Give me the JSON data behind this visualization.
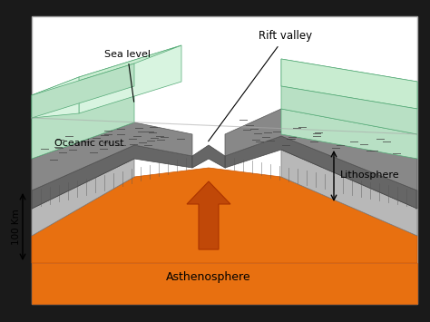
{
  "outer_bg": "#1a1a1a",
  "diagram_bg": "#f0f0f0",
  "labels": {
    "rift_valley": "Rift valley",
    "sea_level": "Sea level",
    "oceanic_crust": "Oceanic crust",
    "lithosphere": "Lithosphere",
    "asthenosphere": "Asthenosphere",
    "scale": "100 Km"
  },
  "colors": {
    "water_side": "#b8e0c4",
    "water_top": "#c8ecd0",
    "water_top_light": "#d8f4e0",
    "crust_dark": "#666666",
    "crust_medium": "#888888",
    "crust_vert_lines": "#555555",
    "litho_upper": "#999999",
    "litho_lower": "#b8b8b8",
    "asthen_orange": "#e87010",
    "asthen_base": "#e06000",
    "asthen_strip": "#e07818",
    "white_bg": "#ffffff",
    "arrow_fill": "#c04808",
    "border": "#888888"
  }
}
